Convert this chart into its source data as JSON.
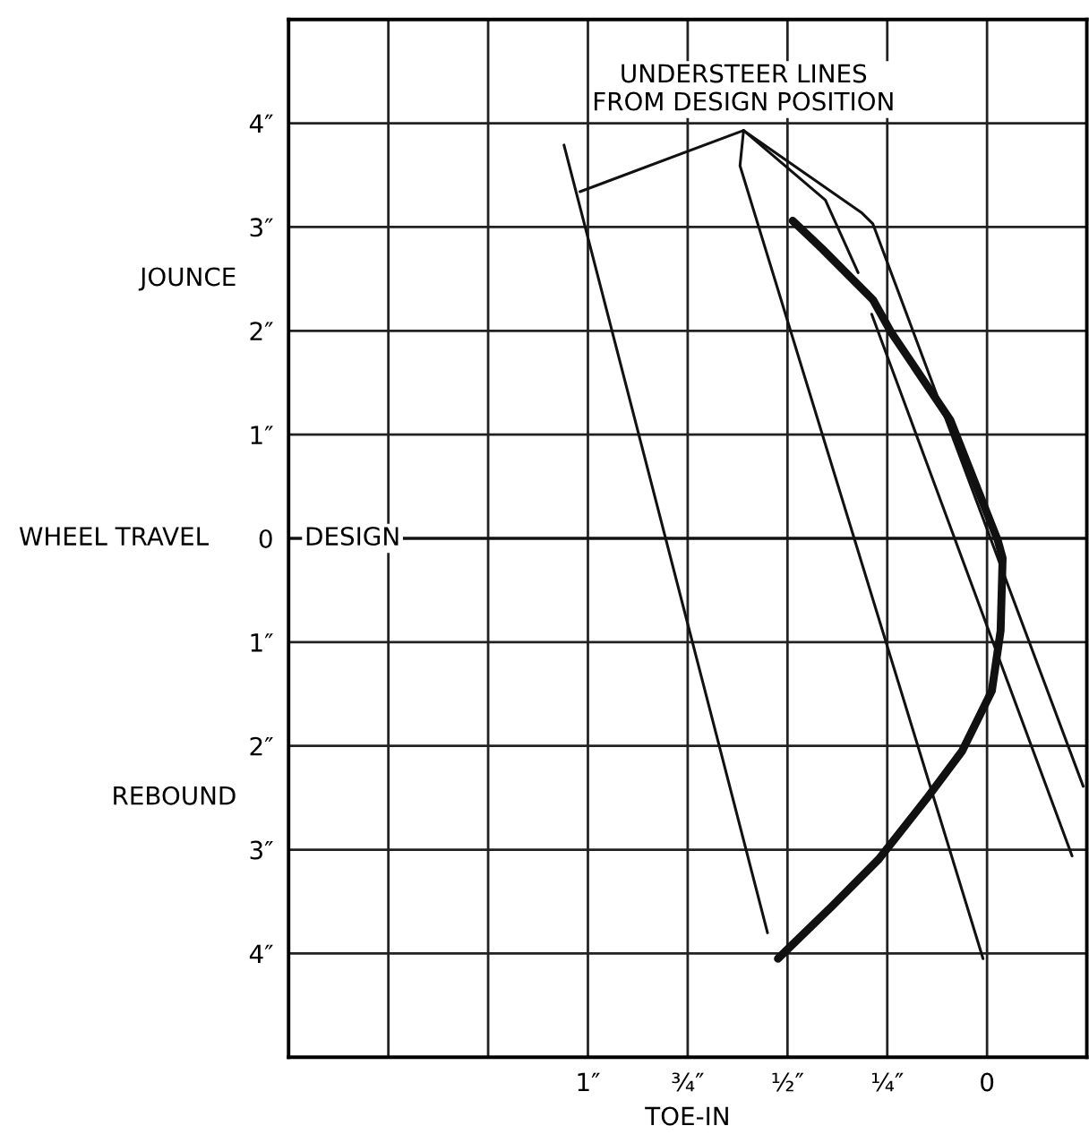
{
  "chart_data": {
    "type": "line",
    "xlabel": "TOE-IN",
    "ylabel": "WHEEL TRAVEL",
    "annotations": [
      {
        "text": "UNDERSTEER LINES\nFROM DESIGN POSITION",
        "x": 0.61,
        "y": 3.93
      },
      "JOUNCE",
      "REBOUND"
    ],
    "series": [
      {
        "color": "#111111",
        "x": [
          0.487,
          0.413,
          0.286,
          0.241,
          0.092,
          -0.027,
          -0.039,
          -0.034,
          -0.012,
          0.0625,
          0.152,
          0.271,
          0.39,
          0.524
        ],
        "values": [
          3.06,
          2.79,
          2.3,
          1.99,
          1.14,
          -0.02,
          -0.19,
          -0.89,
          -1.47,
          -2.05,
          -2.51,
          -3.09,
          -3.55,
          -4.05
        ]
      },
      {
        "color": "#111111",
        "x": [
          0.61,
          1.02,
          null,
          1.06,
          0.55
        ],
        "values": [
          3.93,
          3.34,
          null,
          3.79,
          -3.8
        ]
      },
      {
        "color": "#111111",
        "x": [
          0.61,
          0.619,
          0.01
        ],
        "values": [
          3.93,
          3.59,
          -4.05
        ]
      },
      {
        "color": "#111111",
        "x": [
          0.61,
          0.405,
          0.323,
          null,
          0.289,
          -0.213
        ],
        "values": [
          3.93,
          3.26,
          2.56,
          null,
          2.16,
          -3.06
        ]
      },
      {
        "color": "#111111",
        "x": [
          0.61,
          0.315,
          0.286,
          -0.241
        ],
        "values": [
          3.93,
          3.14,
          3.03,
          -2.39
        ]
      }
    ],
    "ref_lines": [
      {
        "axis": "y",
        "value": 0,
        "label": "DESIGN",
        "color": "#111111"
      }
    ],
    "xlim": [
      1.75,
      -0.25
    ],
    "ylim": [
      -5,
      5
    ],
    "xticks": [
      {
        "value": 1.75,
        "label": null
      },
      {
        "value": 1.5,
        "label": null
      },
      {
        "value": 1.25,
        "label": null
      },
      {
        "value": 1,
        "label": "1″"
      },
      {
        "value": 0.75,
        "label": "¾″"
      },
      {
        "value": 0.5,
        "label": "½″"
      },
      {
        "value": 0.25,
        "label": "¼″"
      },
      0
    ],
    "yticks": [
      {
        "value": -4,
        "label": "4″"
      },
      {
        "value": -3,
        "label": "3″"
      },
      {
        "value": -2,
        "label": "2″"
      },
      {
        "value": -1,
        "label": "1″"
      },
      0,
      {
        "value": 1,
        "label": "1″"
      },
      {
        "value": 2,
        "label": "2″"
      },
      {
        "value": 3,
        "label": "3″"
      },
      {
        "value": 4,
        "label": "4″"
      }
    ],
    "grid": true,
    "legend": false,
    "marker": "none",
    "line_style": "solid"
  }
}
